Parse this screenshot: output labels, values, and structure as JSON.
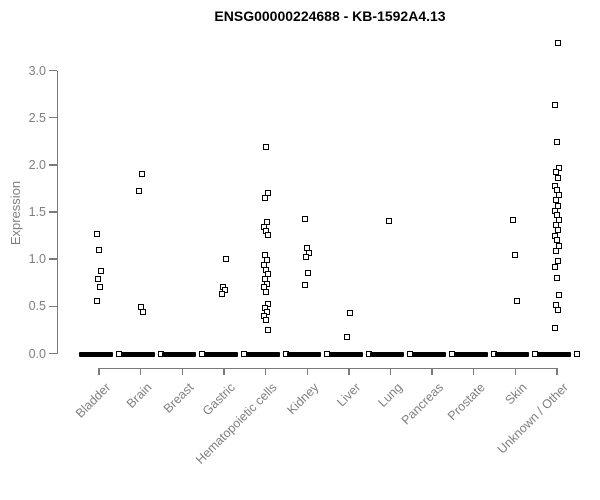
{
  "chart_data": {
    "type": "scatter",
    "subtype": "strip-plot",
    "title": "ENSG00000224688 - KB-1592A4.13",
    "xlabel": "",
    "ylabel": "Expression",
    "ylim": [
      0.0,
      3.3
    ],
    "yticks": [
      0.0,
      0.5,
      1.0,
      1.5,
      2.0,
      2.5,
      3.0
    ],
    "ytick_labels": [
      "0.0",
      "0.5",
      "1.0",
      "1.5",
      "2.0",
      "2.5",
      "3.0"
    ],
    "grid": "off",
    "legend": "none",
    "point_marker": "open-square",
    "zero_line_note": "every category shows a thick black dash of overlapping points at expression 0.0 plus one offset point at its right end",
    "categories": [
      "Bladder",
      "Brain",
      "Breast",
      "Gastric",
      "Hematopoietic cells",
      "Kidney",
      "Liver",
      "Lung",
      "Pancreas",
      "Prostate",
      "Skin",
      "Unknown / Other"
    ],
    "series": [
      {
        "name": "Bladder",
        "values": [
          1.27,
          1.1,
          0.87,
          0.79,
          0.7,
          0.56
        ],
        "zero_dash": true
      },
      {
        "name": "Brain",
        "values": [
          1.9,
          1.72,
          0.49,
          0.44
        ],
        "zero_dash": true
      },
      {
        "name": "Breast",
        "values": [],
        "zero_dash": true
      },
      {
        "name": "Gastric",
        "values": [
          1.0,
          0.71,
          0.67,
          0.63
        ],
        "zero_dash": true
      },
      {
        "name": "Hematopoietic cells",
        "values": [
          2.19,
          1.7,
          1.65,
          1.39,
          1.34,
          1.3,
          1.26,
          1.04,
          0.99,
          0.94,
          0.89,
          0.84,
          0.79,
          0.74,
          0.71,
          0.65,
          0.53,
          0.48,
          0.44,
          0.4,
          0.36,
          0.25
        ],
        "zero_dash": true
      },
      {
        "name": "Kidney",
        "values": [
          1.43,
          1.12,
          1.07,
          1.02,
          0.85,
          0.73
        ],
        "zero_dash": true
      },
      {
        "name": "Liver",
        "values": [
          0.43,
          0.18
        ],
        "zero_dash": true
      },
      {
        "name": "Lung",
        "values": [
          1.4
        ],
        "zero_dash": true
      },
      {
        "name": "Pancreas",
        "values": [],
        "zero_dash": true
      },
      {
        "name": "Prostate",
        "values": [],
        "zero_dash": true
      },
      {
        "name": "Skin",
        "values": [
          1.42,
          1.04,
          0.56
        ],
        "zero_dash": true
      },
      {
        "name": "Unknown / Other",
        "values": [
          3.29,
          2.63,
          2.24,
          1.97,
          1.92,
          1.86,
          1.78,
          1.73,
          1.68,
          1.63,
          1.56,
          1.51,
          1.47,
          1.42,
          1.36,
          1.31,
          1.25,
          1.2,
          1.14,
          1.09,
          0.98,
          0.92,
          0.8,
          0.62,
          0.51,
          0.46,
          0.27
        ],
        "zero_dash": true
      }
    ],
    "colors": {
      "point": "#000000",
      "axis": "#7b7b7b",
      "labels": "#7f7f7f",
      "title": "#000000",
      "background": "#ffffff"
    }
  }
}
